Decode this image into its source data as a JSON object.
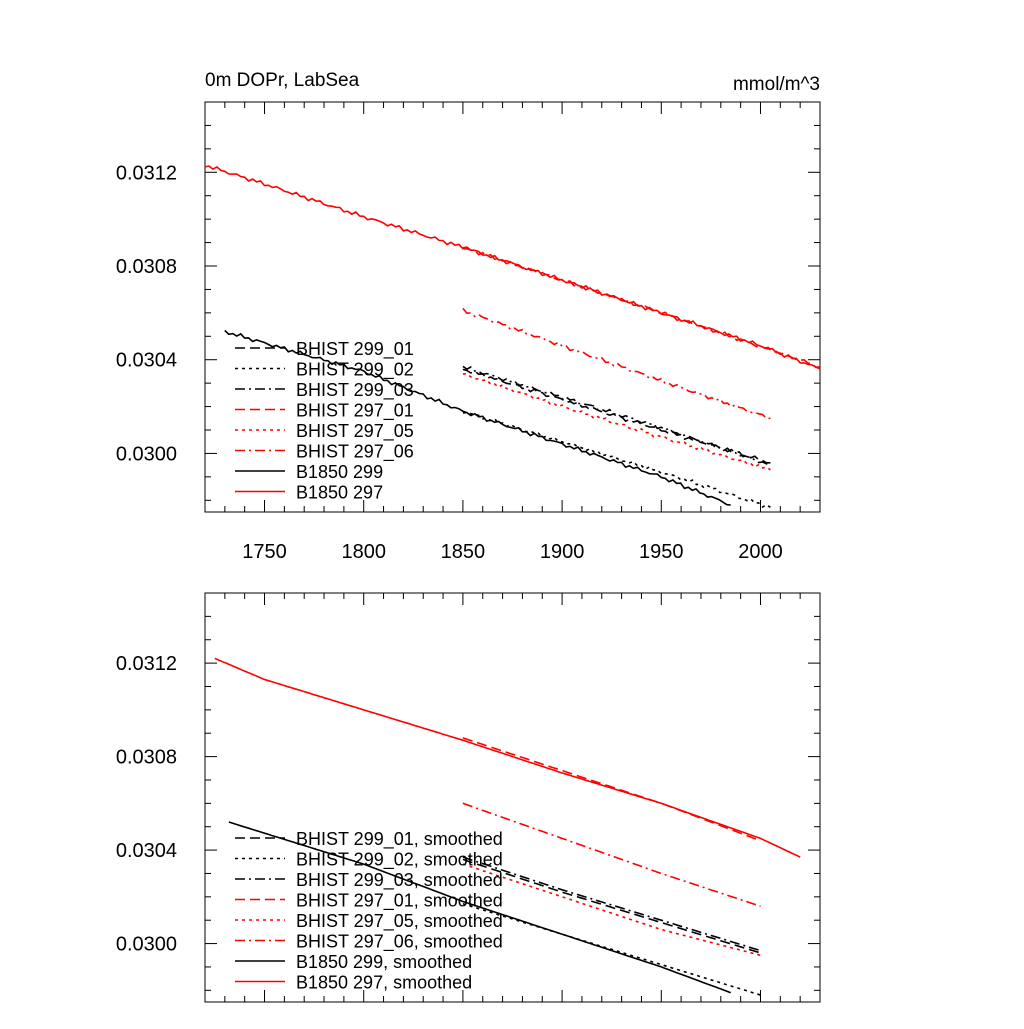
{
  "colors": {
    "black": "#000000",
    "red": "#ff0000"
  },
  "chart_data": [
    {
      "type": "line",
      "title": "0m DOPr, LabSea",
      "units": "mmol/m^3",
      "xlim": [
        1720,
        2030
      ],
      "ylim": [
        0.02975,
        0.0315
      ],
      "x_ticks": [
        1750,
        1800,
        1850,
        1900,
        1950,
        2000
      ],
      "y_ticks": [
        0.03,
        0.0304,
        0.0308,
        0.0312
      ],
      "y_tick_labels": [
        "0.0300",
        "0.0304",
        "0.0308",
        "0.0312"
      ],
      "x_tick_labels": [
        "1750",
        "1800",
        "1850",
        "1900",
        "1950",
        "2000"
      ],
      "grid": false,
      "legend_position": "bottom-left",
      "series": [
        {
          "name": "BHIST 299_01",
          "color": "#000000",
          "dash": "dash",
          "x": [
            1850,
            1900,
            1950,
            2005
          ],
          "y": [
            0.03036,
            0.03023,
            0.0301,
            0.02996
          ]
        },
        {
          "name": "BHIST 299_02",
          "color": "#000000",
          "dash": "dot",
          "x": [
            1850,
            1900,
            1950,
            2005
          ],
          "y": [
            0.03018,
            0.03005,
            0.02992,
            0.02977
          ]
        },
        {
          "name": "BHIST 299_03",
          "color": "#000000",
          "dash": "dashdot",
          "x": [
            1850,
            1900,
            1950,
            2005
          ],
          "y": [
            0.03037,
            0.03024,
            0.03011,
            0.02995
          ]
        },
        {
          "name": "BHIST 297_01",
          "color": "#ff0000",
          "dash": "dash",
          "x": [
            1850,
            1900,
            1950,
            2030
          ],
          "y": [
            0.03088,
            0.03074,
            0.0306,
            0.03037
          ]
        },
        {
          "name": "BHIST 297_05",
          "color": "#ff0000",
          "dash": "dot",
          "x": [
            1850,
            1900,
            1950,
            2005
          ],
          "y": [
            0.03034,
            0.0302,
            0.03007,
            0.02993
          ]
        },
        {
          "name": "BHIST 297_06",
          "color": "#ff0000",
          "dash": "dashdot",
          "x": [
            1850,
            1900,
            1950,
            2005
          ],
          "y": [
            0.03061,
            0.03046,
            0.03031,
            0.03015
          ]
        },
        {
          "name": "B1850 299",
          "color": "#000000",
          "dash": "solid",
          "x": [
            1730,
            1800,
            1850,
            1900,
            1950,
            1985
          ],
          "y": [
            0.03052,
            0.03035,
            0.03018,
            0.03004,
            0.0299,
            0.02978
          ]
        },
        {
          "name": "B1850 297",
          "color": "#ff0000",
          "dash": "solid",
          "x": [
            1720,
            1750,
            1800,
            1850,
            1900,
            1950,
            2000,
            2030
          ],
          "y": [
            0.03123,
            0.03115,
            0.03101,
            0.03088,
            0.03074,
            0.0306,
            0.03046,
            0.03036
          ]
        }
      ]
    },
    {
      "type": "line",
      "xlim": [
        1720,
        2030
      ],
      "ylim": [
        0.02975,
        0.0315
      ],
      "y_ticks": [
        0.03,
        0.0304,
        0.0308,
        0.0312
      ],
      "y_tick_labels": [
        "0.0300",
        "0.0304",
        "0.0308",
        "0.0312"
      ],
      "grid": false,
      "legend_position": "bottom-left",
      "series": [
        {
          "name": "BHIST 299_01, smoothed",
          "color": "#000000",
          "dash": "dash",
          "x": [
            1850,
            1900,
            1950,
            2000
          ],
          "y": [
            0.03036,
            0.03022,
            0.03009,
            0.02996
          ]
        },
        {
          "name": "BHIST 299_02, smoothed",
          "color": "#000000",
          "dash": "dot",
          "x": [
            1850,
            1900,
            1950,
            2000
          ],
          "y": [
            0.03017,
            0.03004,
            0.02991,
            0.02978
          ]
        },
        {
          "name": "BHIST 299_03, smoothed",
          "color": "#000000",
          "dash": "dashdot",
          "x": [
            1850,
            1900,
            1950,
            2000
          ],
          "y": [
            0.03037,
            0.03023,
            0.0301,
            0.02997
          ]
        },
        {
          "name": "BHIST 297_01, smoothed",
          "color": "#ff0000",
          "dash": "dash",
          "x": [
            1850,
            1900,
            1950,
            2000
          ],
          "y": [
            0.03088,
            0.03074,
            0.0306,
            0.03044
          ]
        },
        {
          "name": "BHIST 297_05, smoothed",
          "color": "#ff0000",
          "dash": "dot",
          "x": [
            1850,
            1900,
            1950,
            2000
          ],
          "y": [
            0.03034,
            0.0302,
            0.03006,
            0.02995
          ]
        },
        {
          "name": "BHIST 297_06, smoothed",
          "color": "#ff0000",
          "dash": "dashdot",
          "x": [
            1850,
            1900,
            1950,
            2000
          ],
          "y": [
            0.0306,
            0.03045,
            0.0303,
            0.03016
          ]
        },
        {
          "name": "B1850 299, smoothed",
          "color": "#000000",
          "dash": "solid",
          "x": [
            1732,
            1800,
            1850,
            1900,
            1950,
            1985
          ],
          "y": [
            0.03052,
            0.03034,
            0.03018,
            0.03004,
            0.0299,
            0.02979
          ]
        },
        {
          "name": "B1850 297, smoothed",
          "color": "#ff0000",
          "dash": "solid",
          "x": [
            1725,
            1750,
            1800,
            1850,
            1900,
            1950,
            2000,
            2020
          ],
          "y": [
            0.03122,
            0.03113,
            0.031,
            0.03087,
            0.03073,
            0.0306,
            0.03045,
            0.03037
          ]
        }
      ]
    }
  ]
}
